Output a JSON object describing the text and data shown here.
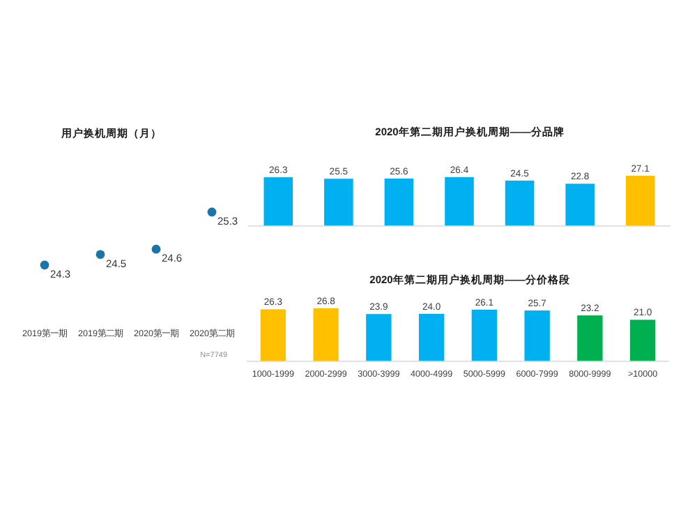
{
  "chart_data": [
    {
      "type": "scatter",
      "title": "用户换机周期（月）",
      "categories": [
        "2019第一期",
        "2019第二期",
        "2020第一期",
        "2020第二期"
      ],
      "values": [
        24.3,
        24.5,
        24.6,
        25.3
      ],
      "color": "#1b75a8",
      "marker": "circle",
      "data_labels": true,
      "tick_labels": "x",
      "annotations": [
        "N=7749"
      ]
    },
    {
      "type": "bar",
      "title": "2020年第二期用户换机周期——分品牌",
      "categories": [
        null,
        null,
        null,
        null,
        null,
        null,
        null
      ],
      "values": [
        26.3,
        25.5,
        25.6,
        26.4,
        24.5,
        22.8,
        27.1
      ],
      "colors": [
        "#00b0f0",
        "#00b0f0",
        "#00b0f0",
        "#00b0f0",
        "#00b0f0",
        "#00b0f0",
        "#ffc000"
      ],
      "data_labels": true,
      "tick_labels": false
    },
    {
      "type": "bar",
      "title": "2020年第二期用户换机周期——分价格段",
      "categories": [
        "1000-1999",
        "2000-2999",
        "3000-3999",
        "4000-4999",
        "5000-5999",
        "6000-7999",
        "8000-9999",
        ">10000"
      ],
      "values": [
        26.3,
        26.8,
        23.9,
        24.0,
        26.1,
        25.7,
        23.2,
        21.0
      ],
      "value_labels": [
        "26.3",
        "26.8",
        "23.9",
        "24.0",
        "26.1",
        "25.7",
        "23.2",
        "21.0"
      ],
      "colors": [
        "#ffc000",
        "#ffc000",
        "#00b0f0",
        "#00b0f0",
        "#00b0f0",
        "#00b0f0",
        "#00b050",
        "#00b050"
      ],
      "tick_labels": "x"
    }
  ]
}
